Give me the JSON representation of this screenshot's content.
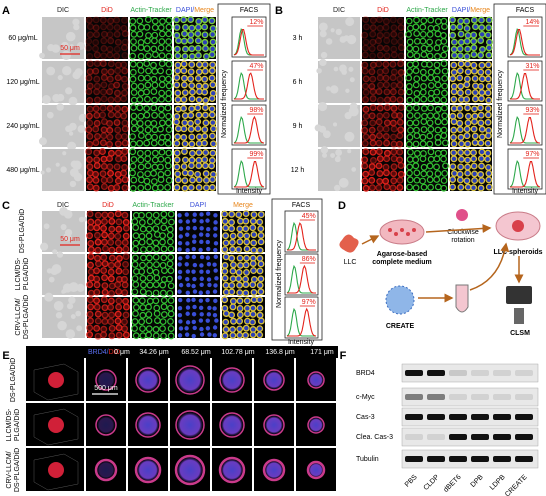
{
  "panel_a": {
    "label": "A",
    "headers": [
      "DIC",
      "DiD",
      "Actin-Tracker"
    ],
    "merge_header": [
      "DAPI/",
      "Merge"
    ],
    "rows": [
      "60 μg/mL",
      "120 μg/mL",
      "240 μg/mL",
      "480 μg/mL"
    ],
    "scale_bar": "50 μm",
    "facs": {
      "title": "FACS",
      "percentages": [
        "12%",
        "47%",
        "98%",
        "99%"
      ],
      "y_label": "Normalized frequency",
      "x_label": "Intensity"
    }
  },
  "panel_b": {
    "label": "B",
    "headers": [
      "DIC",
      "DiD",
      "Actin-Tracker"
    ],
    "merge_header": [
      "DAPI/",
      "Merge"
    ],
    "rows": [
      "3 h",
      "6 h",
      "9 h",
      "12 h"
    ],
    "facs": {
      "title": "FACS",
      "percentages": [
        "14%",
        "31%",
        "93%",
        "97%"
      ],
      "y_label": "Normalized frequency",
      "x_label": "Intensity"
    }
  },
  "panel_c": {
    "label": "C",
    "headers": [
      "DIC",
      "DiD",
      "Actin-Tracker",
      "DAPI",
      "Merge"
    ],
    "rows": [
      [
        "DS-PLGA/DiD"
      ],
      [
        "LLCM/DS-",
        "PLGA/DiD"
      ],
      [
        "CRV-LLCM/",
        "DS-PLGA/DiD"
      ]
    ],
    "scale_bar": "50 μm",
    "facs": {
      "title": "FACS",
      "percentages": [
        "45%",
        "86%",
        "97%"
      ],
      "y_label": "Normalized frequency",
      "x_label": "Intensity"
    }
  },
  "panel_d": {
    "label": "D",
    "cell": "LLC",
    "medium": [
      "Agarose-based",
      "complete medium"
    ],
    "rotation": [
      "Clockwise",
      "rotation"
    ],
    "spheroids": "LLC spheroids",
    "nanoparticle": "CREATE",
    "imaging": "CLSM"
  },
  "panel_e": {
    "label": "E",
    "stain": [
      "BRD4/",
      "DiD"
    ],
    "depths": [
      "0 μm",
      "34.26 μm",
      "68.52 μm",
      "102.78 μm",
      "136.8 μm",
      "171 μm"
    ],
    "scale_bar": "500 μm",
    "rows": [
      [
        "DS-PLGA/DiD"
      ],
      [
        "LLCM/DS-",
        "PLGA/DiD"
      ],
      [
        "CRV-LLCM/",
        "DS-PLGA/DiD"
      ]
    ]
  },
  "panel_f": {
    "label": "F",
    "proteins": [
      "BRD4",
      "c-Myc",
      "Cas-3",
      "Clea. Cas-3",
      "Tubulin"
    ],
    "lanes": [
      "PBS",
      "CLDP",
      "dBET6",
      "DPB",
      "LDPB",
      "CREATE"
    ]
  }
}
